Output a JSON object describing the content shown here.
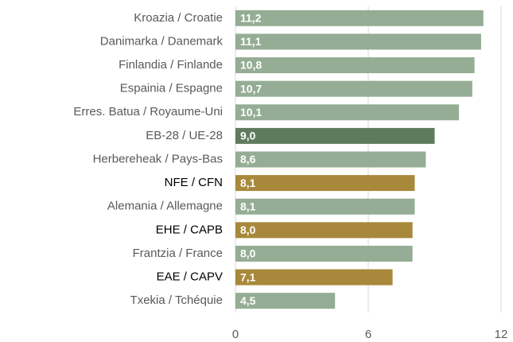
{
  "chart_data": {
    "type": "barh",
    "categories": [
      "Kroazia / Croatie",
      "Danimarka / Danemark",
      "Finlandia / Finlande",
      "Espainia / Espagne",
      "Erres. Batua / Royaume-Uni",
      "EB-28 / UE-28",
      "Herbereheak / Pays-Bas",
      "NFE / CFN",
      "Alemania / Allemagne",
      "EHE / CAPB",
      "Frantzia / France",
      "EAE / CAPV",
      "Txekia / Tchéquie"
    ],
    "values": [
      11.2,
      11.1,
      10.8,
      10.7,
      10.1,
      9.0,
      8.6,
      8.1,
      8.1,
      8.0,
      8.0,
      7.1,
      4.5
    ],
    "value_labels": [
      "11,2",
      "11,1",
      "10,8",
      "10,7",
      "10,1",
      "9,0",
      "8,6",
      "8,1",
      "8,1",
      "8,0",
      "8,0",
      "7,1",
      "4,5"
    ],
    "colors": [
      "#94ad94",
      "#94ad94",
      "#94ad94",
      "#94ad94",
      "#94ad94",
      "#5e7b5e",
      "#94ad94",
      "#a8883a",
      "#94ad94",
      "#a8883a",
      "#94ad94",
      "#a8883a",
      "#94ad94"
    ],
    "label_colors": [
      "#595959",
      "#595959",
      "#595959",
      "#595959",
      "#595959",
      "#595959",
      "#595959",
      "#000000",
      "#595959",
      "#000000",
      "#595959",
      "#000000",
      "#595959"
    ],
    "xlim": [
      0,
      12
    ],
    "xticks": [
      0,
      6,
      12
    ],
    "grid": true
  }
}
